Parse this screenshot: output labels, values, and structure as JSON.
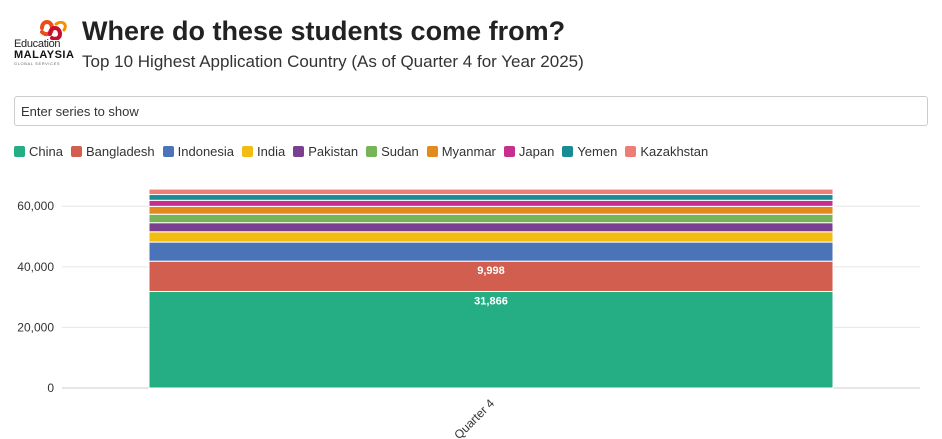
{
  "header": {
    "logo": {
      "line1": "Education",
      "line2": "MALAYSIA",
      "line3": "GLOBAL SERVICES",
      "colors": [
        "#e84e1b",
        "#c8102e",
        "#f39200"
      ]
    },
    "title": "Where do these students come from?",
    "subtitle": "Top 10 Highest Application Country (As of Quarter 4 for Year 2025)"
  },
  "search": {
    "placeholder": "Enter series to show",
    "value": ""
  },
  "chart_data": {
    "type": "bar",
    "stacked": true,
    "categories": [
      "Quarter 4"
    ],
    "series": [
      {
        "name": "China",
        "values": [
          31866
        ],
        "color": "#25ad84",
        "label": "31,866"
      },
      {
        "name": "Bangladesh",
        "values": [
          9998
        ],
        "color": "#d15e4e",
        "label": "9,998"
      },
      {
        "name": "Indonesia",
        "values": [
          6300
        ],
        "color": "#4a73b8"
      },
      {
        "name": "India",
        "values": [
          3400
        ],
        "color": "#f2bc11"
      },
      {
        "name": "Pakistan",
        "values": [
          3000
        ],
        "color": "#7b3f8f"
      },
      {
        "name": "Sudan",
        "values": [
          2800
        ],
        "color": "#77b357"
      },
      {
        "name": "Myanmar",
        "values": [
          2600
        ],
        "color": "#e28a1e"
      },
      {
        "name": "Japan",
        "values": [
          2000
        ],
        "color": "#c82e8e"
      },
      {
        "name": "Yemen",
        "values": [
          1900
        ],
        "color": "#178c95"
      },
      {
        "name": "Kazakhstan",
        "values": [
          1800
        ],
        "color": "#ec7d77"
      }
    ],
    "y_ticks": [
      "0",
      "20,000",
      "40,000",
      "60,000"
    ],
    "y_tick_values": [
      0,
      20000,
      40000,
      60000
    ],
    "ylim": [
      0,
      68000
    ],
    "grid": true,
    "legend_position": "top-left",
    "xlabel": "",
    "ylabel": ""
  }
}
